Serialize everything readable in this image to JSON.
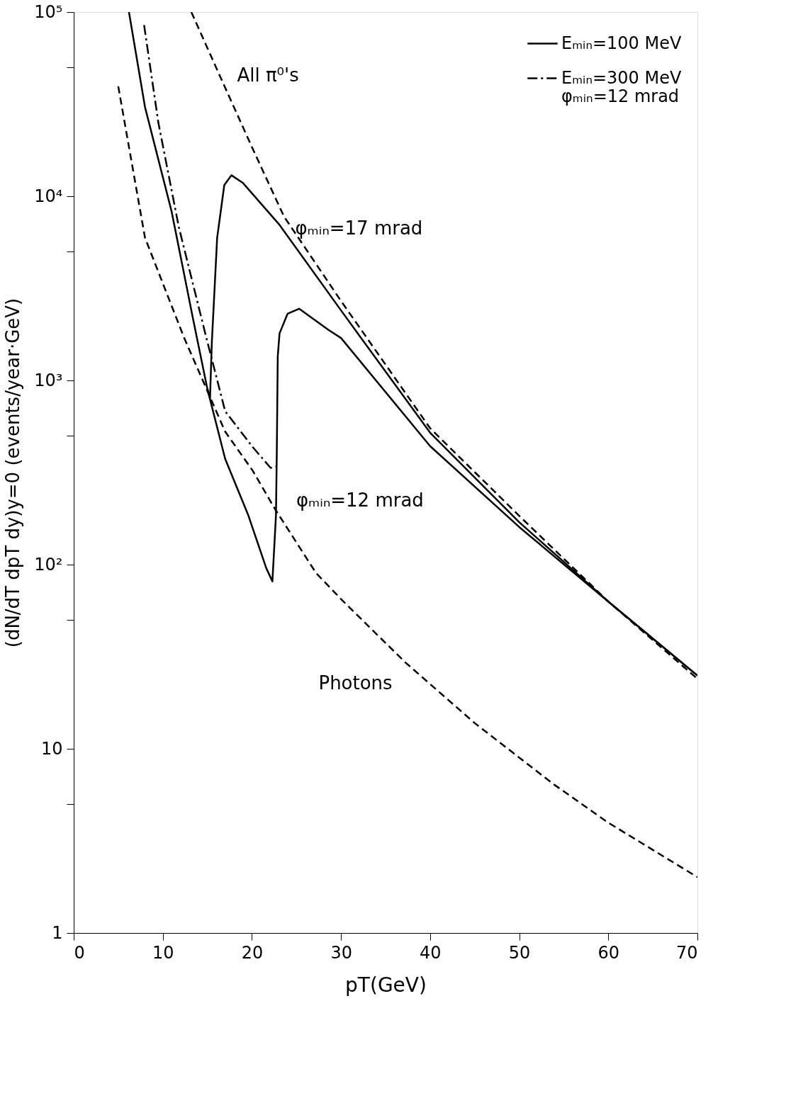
{
  "chart_data": {
    "type": "line",
    "xlabel": "pT(GeV)",
    "ylabel": "(dN/dT dpT dy)y=0 (events/year·GeV)",
    "xlim": [
      0,
      70
    ],
    "xticks": [
      0,
      10,
      20,
      30,
      40,
      50,
      60,
      70
    ],
    "ylim": [
      1,
      100000
    ],
    "yticks": [
      1,
      {
        "value": 5,
        "label": null
      },
      10,
      {
        "value": 50,
        "label": null
      },
      {
        "value": 100,
        "label": "10²"
      },
      {
        "value": 500,
        "label": null
      },
      {
        "value": 1000,
        "label": "10³"
      },
      {
        "value": 5000,
        "label": null
      },
      {
        "value": 10000,
        "label": "10⁴"
      },
      {
        "value": 50000,
        "label": null
      },
      {
        "value": 100000,
        "label": "10⁵"
      }
    ],
    "log": "y",
    "grid": false,
    "legend": "top right",
    "series": [
      {
        "color": "#000000",
        "line_style": "dashed",
        "x": [
          13.2,
          16.9,
          20,
          23.6,
          30,
          40,
          50,
          60,
          70
        ],
        "values": [
          100000,
          39800,
          18500,
          7760,
          2700,
          550,
          184,
          63,
          24
        ]
      },
      {
        "name": "Eₘᵢₙ=100 MeV",
        "color": "#000000",
        "line_style": "solid",
        "x": [
          6.2,
          8.0,
          11.0,
          13.35,
          15.0,
          15.3,
          15.5,
          16.1,
          16.9,
          17.7,
          19,
          23.1,
          30,
          40,
          50,
          60,
          70
        ],
        "values": [
          100000,
          30500,
          8220,
          2210,
          900,
          800,
          1600,
          5950,
          11500,
          13000,
          11800,
          6990,
          2400,
          520,
          170,
          63,
          25
        ]
      },
      {
        "color": "#000000",
        "line_style": "solid",
        "x": [
          15.0,
          17.0,
          19.6,
          21.6,
          22.3,
          22.7,
          22.8,
          22.9,
          23.1,
          24,
          25.3,
          28.6,
          30,
          40,
          50,
          60,
          70
        ],
        "values": [
          900,
          375,
          185,
          96,
          81,
          185,
          434,
          1350,
          1800,
          2300,
          2450,
          1880,
          1700,
          440,
          160,
          63,
          25
        ]
      },
      {
        "name": "Eₘᵢₙ=300 MeV\nφₘᵢₙ=12 mrad",
        "color": "#000000",
        "line_style": "dashdot",
        "x": [
          7.9,
          9.5,
          11.8,
          14.8,
          17.0,
          20.1,
          22.1,
          22.7
        ],
        "values": [
          85000,
          25100,
          6790,
          1770,
          680,
          434,
          335,
          340
        ]
      },
      {
        "color": "#000000",
        "line_style": "dashed",
        "x": [
          5.0,
          8.0,
          12.4,
          17.0,
          20.1,
          22.6,
          27.2,
          30,
          37.2,
          45,
          53.9,
          60,
          70
        ],
        "values": [
          39500,
          5950,
          1700,
          527,
          323,
          200,
          90,
          65,
          29.5,
          13.8,
          6.4,
          3.97,
          2.01
        ]
      }
    ],
    "annotations": [
      {
        "text": "All π⁰'s",
        "x": 16.9,
        "y": 39800
      },
      {
        "text": "φₘᵢₙ=17 mrad",
        "x": 23.1,
        "y": 6990
      },
      {
        "text": "φₘᵢₙ=12 mrad",
        "x": 22.9,
        "y": 450
      },
      {
        "text": "Photons",
        "x": 37.2,
        "y": 29.5
      }
    ]
  }
}
